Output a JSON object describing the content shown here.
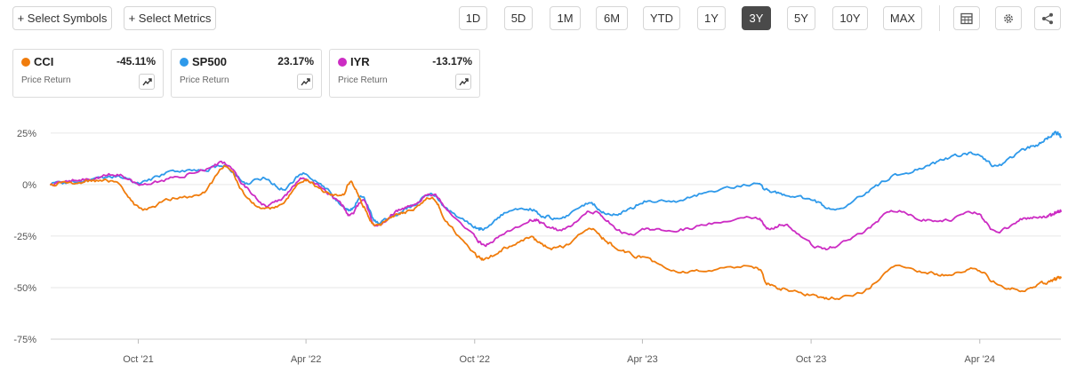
{
  "toolbar": {
    "select_symbols": "+ Select Symbols",
    "select_metrics": "+ Select Metrics",
    "ranges": [
      "1D",
      "5D",
      "1M",
      "6M",
      "YTD",
      "1Y",
      "3Y",
      "5Y",
      "10Y",
      "MAX"
    ],
    "active_range": "3Y",
    "icons": [
      "table-icon",
      "gear-icon",
      "share-icon"
    ]
  },
  "cards": [
    {
      "symbol": "CCI",
      "change": "-45.11%",
      "metric": "Price Return",
      "color": "#f07c0c"
    },
    {
      "symbol": "SP500",
      "change": "23.17%",
      "metric": "Price Return",
      "color": "#2e99ea"
    },
    {
      "symbol": "IYR",
      "change": "-13.17%",
      "metric": "Price Return",
      "color": "#cc2cc3"
    }
  ],
  "chart_data": {
    "type": "line",
    "y_tick_labels": [
      "25%",
      "0%",
      "-25%",
      "-50%",
      "-75%"
    ],
    "y_ticks": [
      25,
      0,
      -25,
      -50,
      -75
    ],
    "ylim": [
      -75,
      37
    ],
    "x_tick_labels": [
      "Oct '21",
      "Apr '22",
      "Oct '22",
      "Apr '23",
      "Oct '23",
      "Apr '24"
    ],
    "x_ticks": [
      "2021-10-01",
      "2022-04-01",
      "2022-10-01",
      "2023-04-01",
      "2023-10-01",
      "2024-04-01"
    ],
    "x_range": [
      "2021-06-28",
      "2024-06-28"
    ],
    "grid": "horizontal",
    "series": [
      {
        "name": "SP500",
        "color": "#2e99ea",
        "points": [
          [
            "2021-06-28",
            0
          ],
          [
            "2021-07-20",
            1
          ],
          [
            "2021-08-15",
            2
          ],
          [
            "2021-09-10",
            4
          ],
          [
            "2021-10-04",
            1
          ],
          [
            "2021-11-05",
            6
          ],
          [
            "2021-12-10",
            7
          ],
          [
            "2022-01-04",
            9
          ],
          [
            "2022-01-25",
            1
          ],
          [
            "2022-02-15",
            3
          ],
          [
            "2022-03-08",
            -2
          ],
          [
            "2022-03-29",
            5
          ],
          [
            "2022-04-20",
            -1
          ],
          [
            "2022-05-10",
            -10
          ],
          [
            "2022-05-20",
            -12
          ],
          [
            "2022-06-02",
            -6
          ],
          [
            "2022-06-16",
            -18
          ],
          [
            "2022-07-05",
            -15
          ],
          [
            "2022-07-25",
            -10
          ],
          [
            "2022-08-16",
            -5
          ],
          [
            "2022-09-01",
            -12
          ],
          [
            "2022-09-30",
            -20
          ],
          [
            "2022-10-12",
            -21
          ],
          [
            "2022-11-02",
            -14
          ],
          [
            "2022-11-30",
            -12
          ],
          [
            "2022-12-15",
            -15
          ],
          [
            "2023-01-05",
            -16
          ],
          [
            "2023-02-02",
            -9
          ],
          [
            "2023-02-20",
            -14
          ],
          [
            "2023-03-13",
            -13
          ],
          [
            "2023-04-05",
            -8
          ],
          [
            "2023-05-10",
            -8
          ],
          [
            "2023-06-15",
            -3
          ],
          [
            "2023-07-31",
            0
          ],
          [
            "2023-08-15",
            -3
          ],
          [
            "2023-09-05",
            -5
          ],
          [
            "2023-10-05",
            -8
          ],
          [
            "2023-10-27",
            -12
          ],
          [
            "2023-11-30",
            -4
          ],
          [
            "2023-12-29",
            4
          ],
          [
            "2024-01-31",
            8
          ],
          [
            "2024-02-28",
            13
          ],
          [
            "2024-03-28",
            15
          ],
          [
            "2024-04-19",
            9
          ],
          [
            "2024-05-15",
            16
          ],
          [
            "2024-06-05",
            20
          ],
          [
            "2024-06-18",
            24
          ],
          [
            "2024-06-24",
            25
          ],
          [
            "2024-06-28",
            23
          ]
        ]
      },
      {
        "name": "IYR",
        "color": "#cc2cc3",
        "points": [
          [
            "2021-06-28",
            0
          ],
          [
            "2021-07-20",
            2
          ],
          [
            "2021-08-15",
            3
          ],
          [
            "2021-09-10",
            5
          ],
          [
            "2021-10-04",
            0
          ],
          [
            "2021-11-05",
            3
          ],
          [
            "2021-12-10",
            7
          ],
          [
            "2022-01-04",
            10
          ],
          [
            "2022-01-25",
            -1
          ],
          [
            "2022-02-15",
            -10
          ],
          [
            "2022-03-08",
            -6
          ],
          [
            "2022-03-29",
            3
          ],
          [
            "2022-04-20",
            -3
          ],
          [
            "2022-05-10",
            -10
          ],
          [
            "2022-05-20",
            -15
          ],
          [
            "2022-06-02",
            -8
          ],
          [
            "2022-06-16",
            -20
          ],
          [
            "2022-07-05",
            -14
          ],
          [
            "2022-07-25",
            -10
          ],
          [
            "2022-08-16",
            -5
          ],
          [
            "2022-09-01",
            -12
          ],
          [
            "2022-09-30",
            -25
          ],
          [
            "2022-10-12",
            -29
          ],
          [
            "2022-11-02",
            -24
          ],
          [
            "2022-11-30",
            -17
          ],
          [
            "2022-12-15",
            -19
          ],
          [
            "2023-01-05",
            -22
          ],
          [
            "2023-02-02",
            -13
          ],
          [
            "2023-02-20",
            -17
          ],
          [
            "2023-03-13",
            -24
          ],
          [
            "2023-04-05",
            -22
          ],
          [
            "2023-05-10",
            -22
          ],
          [
            "2023-06-15",
            -19
          ],
          [
            "2023-07-31",
            -16
          ],
          [
            "2023-08-15",
            -21
          ],
          [
            "2023-09-05",
            -20
          ],
          [
            "2023-10-05",
            -30
          ],
          [
            "2023-10-27",
            -30
          ],
          [
            "2023-11-30",
            -22
          ],
          [
            "2023-12-29",
            -13
          ],
          [
            "2024-01-31",
            -17
          ],
          [
            "2024-02-28",
            -17
          ],
          [
            "2024-03-28",
            -14
          ],
          [
            "2024-04-19",
            -23
          ],
          [
            "2024-05-15",
            -17
          ],
          [
            "2024-06-05",
            -16
          ],
          [
            "2024-06-18",
            -15
          ],
          [
            "2024-06-24",
            -13
          ],
          [
            "2024-06-28",
            -13
          ]
        ]
      },
      {
        "name": "CCI",
        "color": "#f07c0c",
        "points": [
          [
            "2021-06-28",
            0
          ],
          [
            "2021-07-20",
            1
          ],
          [
            "2021-08-15",
            2
          ],
          [
            "2021-09-10",
            0
          ],
          [
            "2021-10-04",
            -12
          ],
          [
            "2021-11-05",
            -7
          ],
          [
            "2021-12-10",
            -4
          ],
          [
            "2022-01-04",
            9
          ],
          [
            "2022-01-25",
            -5
          ],
          [
            "2022-02-15",
            -12
          ],
          [
            "2022-03-08",
            -8
          ],
          [
            "2022-03-29",
            2
          ],
          [
            "2022-04-20",
            -3
          ],
          [
            "2022-05-10",
            -5
          ],
          [
            "2022-05-20",
            1
          ],
          [
            "2022-06-02",
            -10
          ],
          [
            "2022-06-16",
            -20
          ],
          [
            "2022-07-05",
            -15
          ],
          [
            "2022-07-25",
            -12
          ],
          [
            "2022-08-16",
            -6
          ],
          [
            "2022-09-01",
            -18
          ],
          [
            "2022-09-30",
            -33
          ],
          [
            "2022-10-12",
            -36
          ],
          [
            "2022-11-02",
            -31
          ],
          [
            "2022-11-30",
            -26
          ],
          [
            "2022-12-15",
            -30
          ],
          [
            "2023-01-05",
            -30
          ],
          [
            "2023-02-02",
            -22
          ],
          [
            "2023-02-20",
            -27
          ],
          [
            "2023-03-13",
            -33
          ],
          [
            "2023-04-05",
            -36
          ],
          [
            "2023-05-10",
            -42
          ],
          [
            "2023-06-15",
            -41
          ],
          [
            "2023-07-31",
            -40
          ],
          [
            "2023-08-15",
            -48
          ],
          [
            "2023-09-05",
            -51
          ],
          [
            "2023-10-05",
            -54
          ],
          [
            "2023-10-27",
            -55
          ],
          [
            "2023-11-30",
            -51
          ],
          [
            "2023-12-29",
            -40
          ],
          [
            "2024-01-31",
            -42
          ],
          [
            "2024-02-28",
            -44
          ],
          [
            "2024-03-28",
            -41
          ],
          [
            "2024-04-19",
            -48
          ],
          [
            "2024-05-15",
            -51
          ],
          [
            "2024-06-05",
            -48
          ],
          [
            "2024-06-18",
            -47
          ],
          [
            "2024-06-24",
            -45
          ],
          [
            "2024-06-28",
            -45
          ]
        ]
      }
    ]
  }
}
